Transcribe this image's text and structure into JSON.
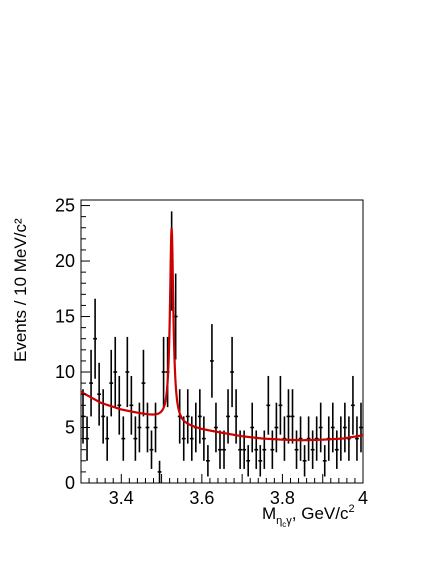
{
  "chart_data": {
    "type": "scatter",
    "ylabel": "Events / 10 MeV/c²",
    "xlabel": {
      "main": "M",
      "sub": "η",
      "subsub": "c",
      "sub2": "γ",
      "rest": ", GeV/c",
      "sup": "2"
    },
    "xlim": [
      3.3,
      4.0
    ],
    "ylim": [
      0,
      25.5
    ],
    "x_ticks": [
      {
        "value": 3.4,
        "label": "3.4"
      },
      {
        "value": 3.6,
        "label": "3.6"
      },
      {
        "value": 3.8,
        "label": "3.8"
      },
      {
        "value": 4.0,
        "label": "4"
      }
    ],
    "y_ticks": [
      {
        "value": 0,
        "label": "0"
      },
      {
        "value": 5,
        "label": "5"
      },
      {
        "value": 10,
        "label": "10"
      },
      {
        "value": 15,
        "label": "15"
      },
      {
        "value": 20,
        "label": "20"
      },
      {
        "value": 25,
        "label": "25"
      }
    ],
    "grid": false,
    "series": [
      {
        "kind": "data-points-with-errors",
        "color": "#000000",
        "points": [
          [
            3.305,
            6
          ],
          [
            3.315,
            4
          ],
          [
            3.325,
            9
          ],
          [
            3.335,
            13
          ],
          [
            3.345,
            8
          ],
          [
            3.355,
            6
          ],
          [
            3.365,
            4
          ],
          [
            3.375,
            9
          ],
          [
            3.385,
            10
          ],
          [
            3.395,
            7
          ],
          [
            3.405,
            4
          ],
          [
            3.415,
            10
          ],
          [
            3.425,
            7
          ],
          [
            3.435,
            4
          ],
          [
            3.445,
            5
          ],
          [
            3.455,
            9
          ],
          [
            3.465,
            5
          ],
          [
            3.475,
            3
          ],
          [
            3.485,
            5
          ],
          [
            3.495,
            1
          ],
          [
            3.505,
            10
          ],
          [
            3.515,
            10
          ],
          [
            3.525,
            20
          ],
          [
            3.535,
            15
          ],
          [
            3.545,
            6
          ],
          [
            3.555,
            4
          ],
          [
            3.565,
            6
          ],
          [
            3.575,
            4
          ],
          [
            3.585,
            5
          ],
          [
            3.595,
            6
          ],
          [
            3.605,
            4
          ],
          [
            3.615,
            2
          ],
          [
            3.625,
            11
          ],
          [
            3.635,
            5
          ],
          [
            3.645,
            3
          ],
          [
            3.655,
            3
          ],
          [
            3.665,
            6
          ],
          [
            3.675,
            10
          ],
          [
            3.685,
            6
          ],
          [
            3.695,
            3
          ],
          [
            3.705,
            3
          ],
          [
            3.715,
            2
          ],
          [
            3.725,
            5
          ],
          [
            3.735,
            3
          ],
          [
            3.745,
            2
          ],
          [
            3.755,
            3
          ],
          [
            3.765,
            7
          ],
          [
            3.775,
            3
          ],
          [
            3.785,
            5
          ],
          [
            3.795,
            7
          ],
          [
            3.805,
            4
          ],
          [
            3.815,
            6
          ],
          [
            3.825,
            6
          ],
          [
            3.835,
            3
          ],
          [
            3.845,
            4
          ],
          [
            3.855,
            2
          ],
          [
            3.865,
            4
          ],
          [
            3.875,
            3
          ],
          [
            3.885,
            4
          ],
          [
            3.895,
            5
          ],
          [
            3.905,
            2
          ],
          [
            3.915,
            4
          ],
          [
            3.925,
            5
          ],
          [
            3.935,
            3
          ],
          [
            3.945,
            4
          ],
          [
            3.955,
            5
          ],
          [
            3.965,
            4
          ],
          [
            3.975,
            7
          ],
          [
            3.985,
            4
          ],
          [
            3.995,
            5
          ]
        ]
      },
      {
        "kind": "fit-curve",
        "color": "#cc0000",
        "model": {
          "background": [
            [
              3.3,
              8.2
            ],
            [
              3.35,
              7.2
            ],
            [
              3.4,
              6.6
            ],
            [
              3.45,
              6.2
            ],
            [
              3.5,
              5.8
            ],
            [
              3.55,
              5.2
            ],
            [
              3.6,
              4.8
            ],
            [
              3.65,
              4.5
            ],
            [
              3.7,
              4.2
            ],
            [
              3.75,
              4.0
            ],
            [
              3.8,
              3.9
            ],
            [
              3.85,
              3.85
            ],
            [
              3.9,
              3.9
            ],
            [
              3.95,
              4.0
            ],
            [
              4.0,
              4.3
            ]
          ],
          "peak_center": 3.525,
          "peak_height": 17.5,
          "peak_width": 0.005
        }
      }
    ]
  }
}
